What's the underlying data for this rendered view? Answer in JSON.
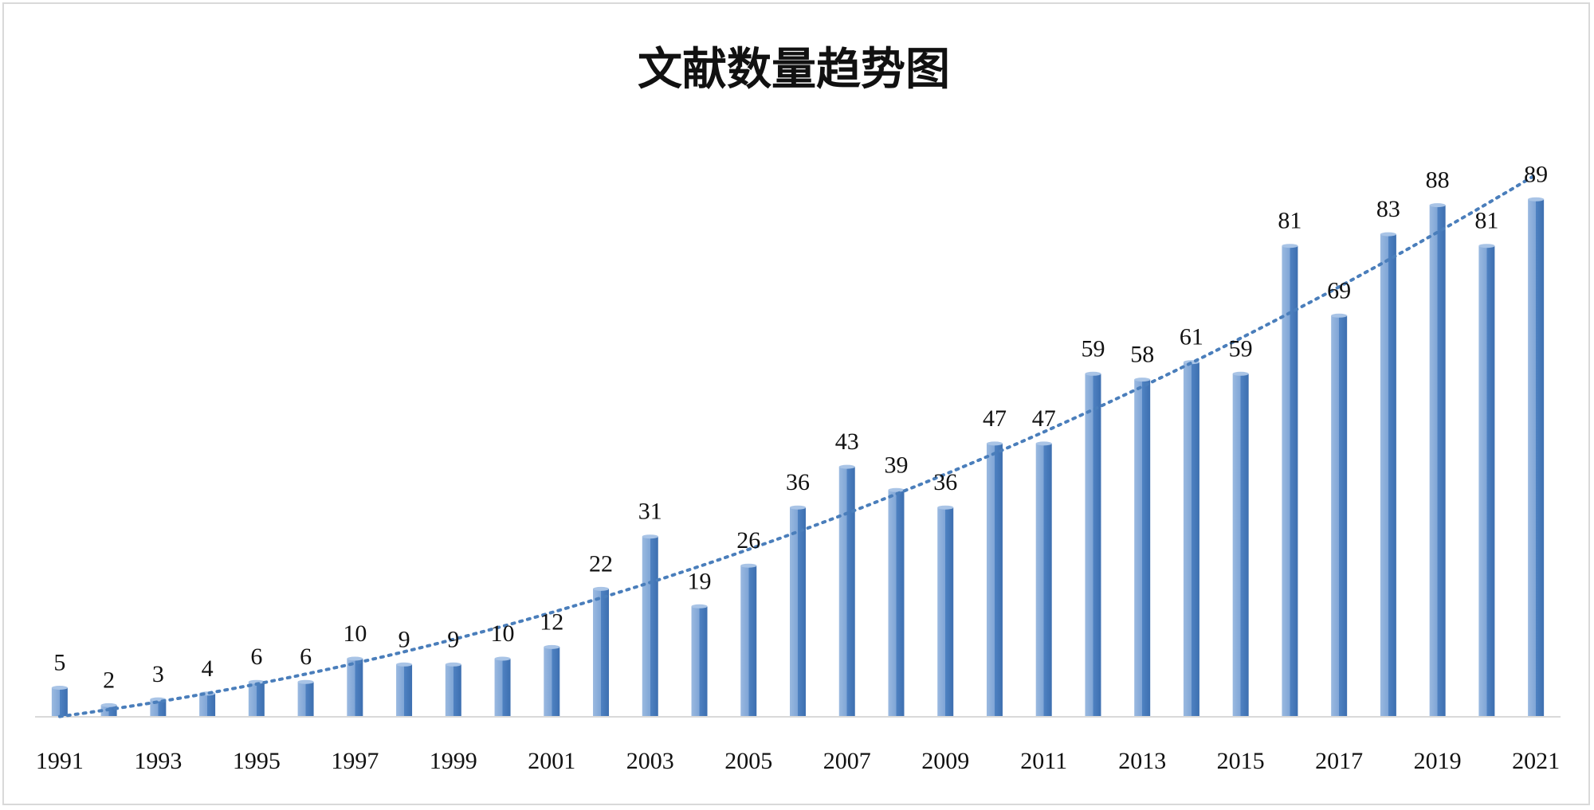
{
  "chart_data": {
    "type": "bar",
    "title": "文献数量趋势图",
    "categories": [
      "1991",
      "1992",
      "1993",
      "1994",
      "1995",
      "1996",
      "1997",
      "1998",
      "1999",
      "2000",
      "2001",
      "2002",
      "2003",
      "2004",
      "2005",
      "2006",
      "2007",
      "2008",
      "2009",
      "2010",
      "2011",
      "2012",
      "2013",
      "2014",
      "2015",
      "2016",
      "2017",
      "2018",
      "2019",
      "2020",
      "2021"
    ],
    "values": [
      5,
      2,
      3,
      4,
      6,
      6,
      10,
      9,
      9,
      10,
      12,
      22,
      31,
      19,
      26,
      36,
      43,
      39,
      36,
      47,
      47,
      59,
      58,
      61,
      59,
      81,
      69,
      83,
      88,
      81,
      89
    ],
    "tick_labels": [
      "1991",
      "1993",
      "1995",
      "1997",
      "1999",
      "2001",
      "2003",
      "2005",
      "2007",
      "2009",
      "2011",
      "2013",
      "2015",
      "2017",
      "2019",
      "2021"
    ],
    "ylim": [
      0,
      100
    ],
    "grid": false,
    "legend": "none",
    "trendline": "polynomial, dotted",
    "data_labels": true,
    "colors": {
      "bar": "#5b8cc9",
      "bar_dark": "#3d6fb0",
      "bar_light": "#9ab9e0",
      "trend": "#4a7ebb",
      "axis": "#d9d9d9"
    }
  }
}
